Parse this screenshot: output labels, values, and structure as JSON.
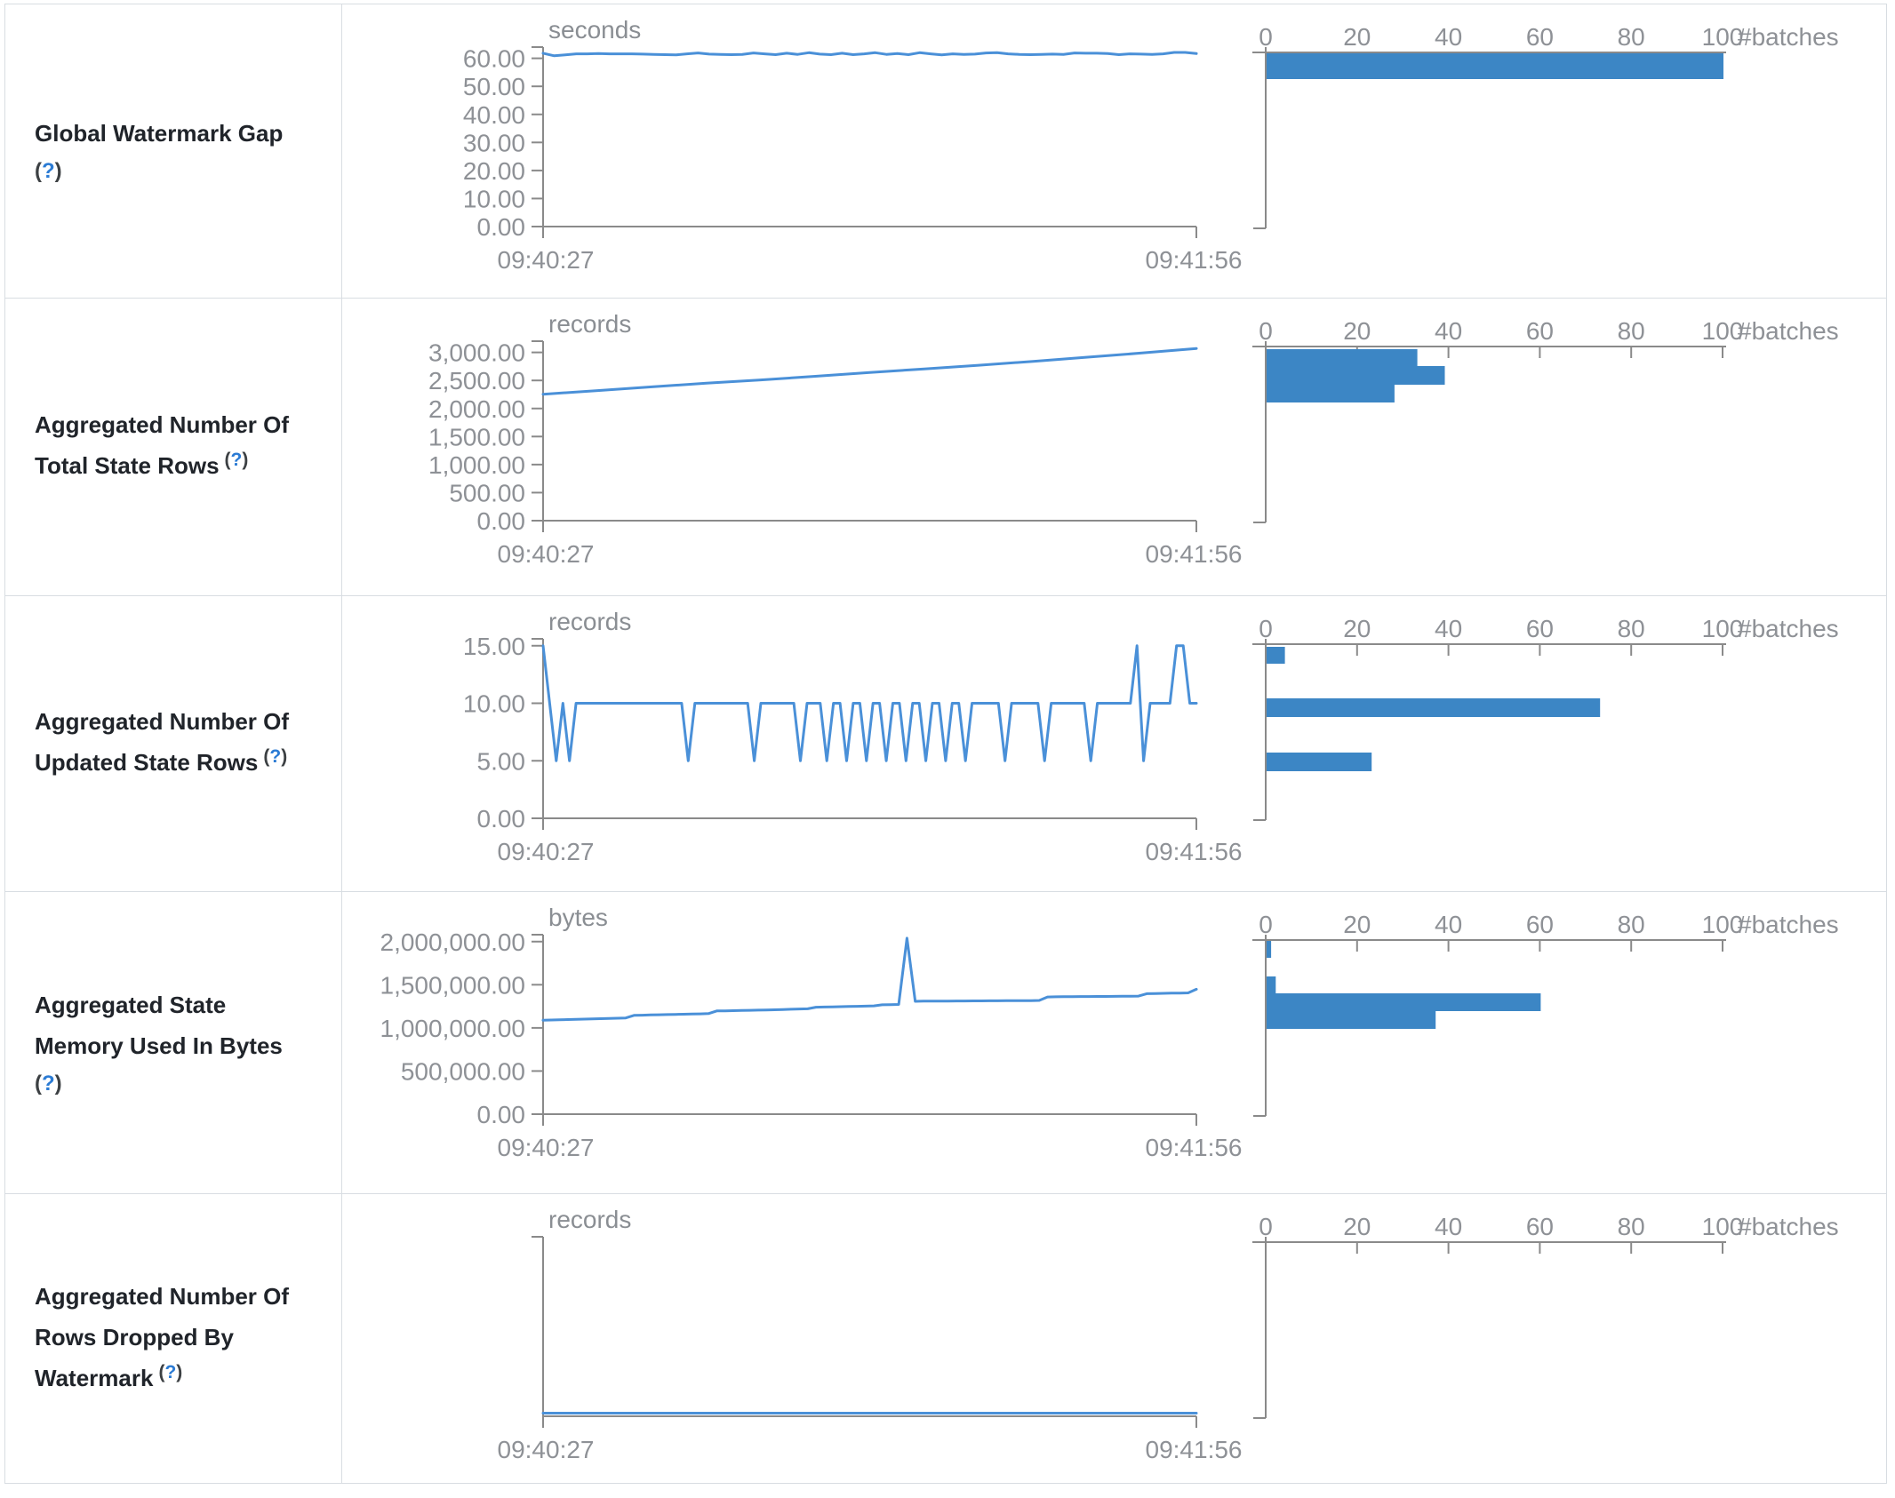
{
  "colors": {
    "line_blue": "#4a90d8",
    "bar_blue": "#3c86c5",
    "axis_gray": "#8a8a8a",
    "text_gray": "#8e9196",
    "border_gray": "#d8dde2",
    "title_dark": "#20242a",
    "help_blue": "#2b7bd4"
  },
  "x_axis": {
    "start": "09:40:27",
    "end": "09:41:56"
  },
  "hist_axis": {
    "ticks": [
      "0",
      "20",
      "40",
      "60",
      "80",
      "100"
    ],
    "unit": "#batches",
    "max": 100
  },
  "chart_data": [
    {
      "id": "global-watermark-gap",
      "title_lines": [
        "Global Watermark Gap"
      ],
      "help": "(?)",
      "help_inline": false,
      "type": "line+histogram",
      "unit": "seconds",
      "y_max": 64,
      "y_ticks": [
        {
          "label": "0.00",
          "v": 0
        },
        {
          "label": "10.00",
          "v": 10
        },
        {
          "label": "20.00",
          "v": 20
        },
        {
          "label": "30.00",
          "v": 30
        },
        {
          "label": "40.00",
          "v": 40
        },
        {
          "label": "50.00",
          "v": 50
        },
        {
          "label": "60.00",
          "v": 60
        }
      ],
      "series": [
        61.8,
        60.9,
        61.2,
        61.6,
        61.6,
        61.7,
        61.6,
        61.6,
        61.6,
        61.5,
        61.4,
        61.3,
        61.2,
        61.6,
        61.9,
        61.5,
        61.4,
        61.3,
        61.4,
        61.9,
        61.6,
        61.3,
        61.8,
        61.4,
        62.0,
        61.5,
        61.3,
        61.8,
        61.3,
        61.6,
        62.0,
        61.4,
        61.7,
        61.3,
        62.0,
        61.6,
        61.2,
        61.6,
        61.4,
        61.5,
        61.9,
        62.0,
        61.6,
        61.4,
        61.3,
        61.4,
        61.5,
        61.4,
        61.9,
        61.8,
        61.8,
        61.7,
        61.3,
        61.6,
        61.5,
        61.4,
        61.6,
        62.1,
        62.1,
        61.7
      ],
      "hist_bins": [
        {
          "count": 100,
          "v": 61,
          "y": 55,
          "h": 29
        }
      ],
      "baseline_gap": 0
    },
    {
      "id": "aggregated-total-state-rows",
      "title_lines": [
        "Aggregated Number Of",
        "Total State Rows"
      ],
      "help": "(?)",
      "help_inline": true,
      "type": "line+histogram",
      "unit": "records",
      "y_max": 3200,
      "y_ticks": [
        {
          "label": "0.00",
          "v": 0
        },
        {
          "label": "500.00",
          "v": 500
        },
        {
          "label": "1,000.00",
          "v": 1000
        },
        {
          "label": "1,500.00",
          "v": 1500
        },
        {
          "label": "2,000.00",
          "v": 2000
        },
        {
          "label": "2,500.00",
          "v": 2500
        },
        {
          "label": "3,000.00",
          "v": 3000
        }
      ],
      "series": [
        2255,
        2320,
        2385,
        2450,
        2510,
        2575,
        2640,
        2705,
        2770,
        2840,
        2915,
        2990,
        3070
      ],
      "hist_bins": [
        {
          "count": 33,
          "v": 2870,
          "y": 57,
          "h": 19
        },
        {
          "count": 39,
          "v": 2540,
          "y": 76,
          "h": 21
        },
        {
          "count": 28,
          "v": 2220,
          "y": 97,
          "h": 20
        }
      ],
      "baseline_gap": 0
    },
    {
      "id": "aggregated-updated-state-rows",
      "title_lines": [
        "Aggregated Number Of",
        "Updated State Rows"
      ],
      "help": "(?)",
      "help_inline": true,
      "type": "line+histogram",
      "unit": "records",
      "y_max": 15.6,
      "y_ticks": [
        {
          "label": "0.00",
          "v": 0
        },
        {
          "label": "5.00",
          "v": 5
        },
        {
          "label": "10.00",
          "v": 10
        },
        {
          "label": "15.00",
          "v": 15
        }
      ],
      "series": [
        15,
        10,
        5,
        10,
        5,
        10,
        10,
        10,
        10,
        10,
        10,
        10,
        10,
        10,
        10,
        10,
        10,
        10,
        10,
        10,
        10,
        10,
        5,
        10,
        10,
        10,
        10,
        10,
        10,
        10,
        10,
        10,
        5,
        10,
        10,
        10,
        10,
        10,
        10,
        5,
        10,
        10,
        10,
        5,
        10,
        10,
        5,
        10,
        10,
        5,
        10,
        10,
        5,
        10,
        10,
        5,
        10,
        10,
        5,
        10,
        10,
        5,
        10,
        10,
        5,
        10,
        10,
        10,
        10,
        10,
        5,
        10,
        10,
        10,
        10,
        10,
        5,
        10,
        10,
        10,
        10,
        10,
        10,
        5,
        10,
        10,
        10,
        10,
        10,
        10,
        15,
        5,
        10,
        10,
        10,
        10,
        15,
        15,
        10,
        10
      ],
      "hist_bins": [
        {
          "count": 4,
          "v": 15,
          "y": 57,
          "h": 19
        },
        {
          "count": 73,
          "v": 10,
          "y": 115,
          "h": 21
        },
        {
          "count": 23,
          "v": 5,
          "y": 176,
          "h": 21
        }
      ],
      "baseline_gap": 0
    },
    {
      "id": "aggregated-state-memory-used",
      "title_lines": [
        "Aggregated State",
        "Memory Used In Bytes"
      ],
      "help": "(?)",
      "help_inline": false,
      "type": "line+histogram",
      "unit": "bytes",
      "y_max": 2080000,
      "y_ticks": [
        {
          "label": "0.00",
          "v": 0
        },
        {
          "label": "500,000.00",
          "v": 500000
        },
        {
          "label": "1,000,000.00",
          "v": 1000000
        },
        {
          "label": "1,500,000.00",
          "v": 1500000
        },
        {
          "label": "2,000,000.00",
          "v": 2000000
        }
      ],
      "series": [
        1088000,
        1091000,
        1094000,
        1097000,
        1100000,
        1102000,
        1105000,
        1107000,
        1110000,
        1112000,
        1115000,
        1145000,
        1147000,
        1150000,
        1152000,
        1154000,
        1156000,
        1158000,
        1160000,
        1163000,
        1166000,
        1196000,
        1198000,
        1200000,
        1202000,
        1204000,
        1206000,
        1208000,
        1210000,
        1213000,
        1216000,
        1219000,
        1221000,
        1240000,
        1242000,
        1244000,
        1246000,
        1248000,
        1250000,
        1252000,
        1255000,
        1268000,
        1270000,
        1272000,
        2040000,
        1308000,
        1310000,
        1310000,
        1311000,
        1311000,
        1312000,
        1312000,
        1313000,
        1313000,
        1314000,
        1314000,
        1315000,
        1315000,
        1316000,
        1316000,
        1318000,
        1358000,
        1360000,
        1361000,
        1362000,
        1363000,
        1363000,
        1364000,
        1364000,
        1365000,
        1366000,
        1366000,
        1368000,
        1396000,
        1398000,
        1400000,
        1402000,
        1404000,
        1406000,
        1448000
      ],
      "hist_bins": [
        {
          "count": 1,
          "v": 2000000,
          "y": 55,
          "h": 19
        },
        {
          "count": 2,
          "v": 1500000,
          "y": 95,
          "h": 19
        },
        {
          "count": 60,
          "v": 1300000,
          "y": 114,
          "h": 20
        },
        {
          "count": 37,
          "v": 1100000,
          "y": 134,
          "h": 20
        }
      ],
      "baseline_gap": 0
    },
    {
      "id": "aggregated-rows-dropped-by-watermark",
      "title_lines": [
        "Aggregated Number Of",
        "Rows Dropped By",
        "Watermark"
      ],
      "help": "(?)",
      "help_inline": true,
      "type": "line+histogram",
      "unit": "records",
      "y_max": 1,
      "y_ticks": [],
      "series": [
        0,
        0
      ],
      "hist_bins": [],
      "baseline_gap": 3.5
    }
  ]
}
